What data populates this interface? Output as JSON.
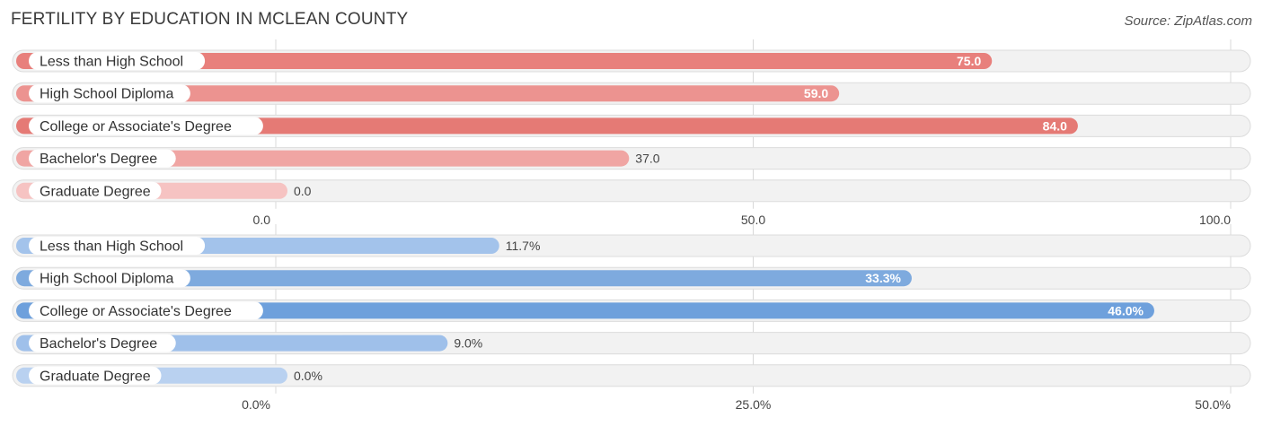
{
  "title": "FERTILITY BY EDUCATION IN MCLEAN COUNTY",
  "source": "Source: ZipAtlas.com",
  "chart_data": [
    {
      "type": "bar",
      "orientation": "horizontal",
      "categories": [
        "Less than High School",
        "High School Diploma",
        "College or Associate's Degree",
        "Bachelor's Degree",
        "Graduate Degree"
      ],
      "values": [
        75.0,
        59.0,
        84.0,
        37.0,
        0.0
      ],
      "value_labels": [
        "75.0",
        "59.0",
        "84.0",
        "37.0",
        "0.0"
      ],
      "xlim": [
        0,
        100
      ],
      "ticks": [
        0,
        50,
        100
      ],
      "tick_labels": [
        "0.0",
        "50.0",
        "100.0"
      ],
      "grid": true,
      "colors": [
        "#e8807c",
        "#ec9390",
        "#e57a75",
        "#f0a5a3",
        "#f6c3c2"
      ]
    },
    {
      "type": "bar",
      "orientation": "horizontal",
      "categories": [
        "Less than High School",
        "High School Diploma",
        "College or Associate's Degree",
        "Bachelor's Degree",
        "Graduate Degree"
      ],
      "values": [
        11.7,
        33.3,
        46.0,
        9.0,
        0.0
      ],
      "value_labels": [
        "11.7%",
        "33.3%",
        "46.0%",
        "9.0%",
        "0.0%"
      ],
      "xlim": [
        0,
        50
      ],
      "ticks": [
        0,
        25,
        50
      ],
      "tick_labels": [
        "0.0%",
        "25.0%",
        "50.0%"
      ],
      "grid": true,
      "colors": [
        "#a3c3eb",
        "#7eaade",
        "#6ea0dc",
        "#9fc0ea",
        "#b9d1f0"
      ]
    }
  ]
}
